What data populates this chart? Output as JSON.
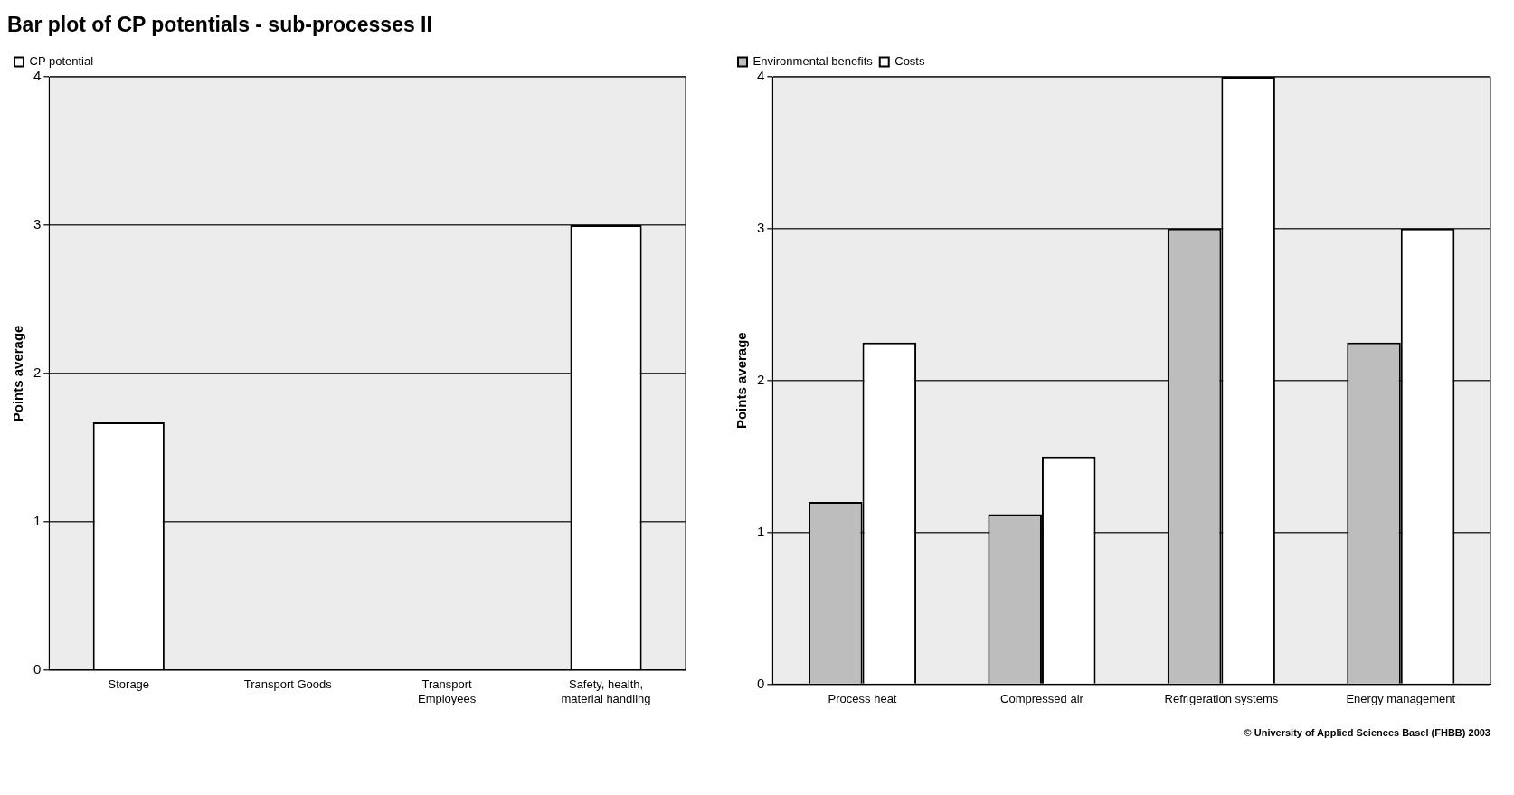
{
  "chart_data": [
    {
      "type": "bar",
      "title": "Bar plot of CP potentials - sub-processes II",
      "ylabel": "Points average",
      "categories": [
        [
          "Storage"
        ],
        [
          "Transport Goods"
        ],
        [
          "Transport",
          "Employees"
        ],
        [
          "Safety, health,",
          "material handling"
        ]
      ],
      "series": [
        {
          "name": "CP potential",
          "color": "#ffffff",
          "values": [
            1.67,
            0,
            0,
            3
          ]
        }
      ],
      "ylim": [
        0,
        4
      ],
      "yticks": [
        0,
        1,
        2,
        3,
        4
      ],
      "grid": "y",
      "legend": "top"
    },
    {
      "type": "bar",
      "ylabel": "Points average",
      "categories": [
        "Process heat",
        "Compressed air",
        "Refrigeration systems",
        "Energy management"
      ],
      "series": [
        {
          "name": "Environmental benefits",
          "color": "#bdbdbd",
          "values": [
            1.2,
            1.12,
            3,
            2.25
          ]
        },
        {
          "name": "Costs",
          "color": "#ffffff",
          "values": [
            2.25,
            1.5,
            4,
            3
          ]
        }
      ],
      "ylim": [
        0,
        4
      ],
      "yticks": [
        0,
        1,
        2,
        3,
        4
      ],
      "grid": "y",
      "legend": "top",
      "annotations": [
        "© University of Applied Sciences Basel (FHBB) 2003"
      ]
    }
  ]
}
